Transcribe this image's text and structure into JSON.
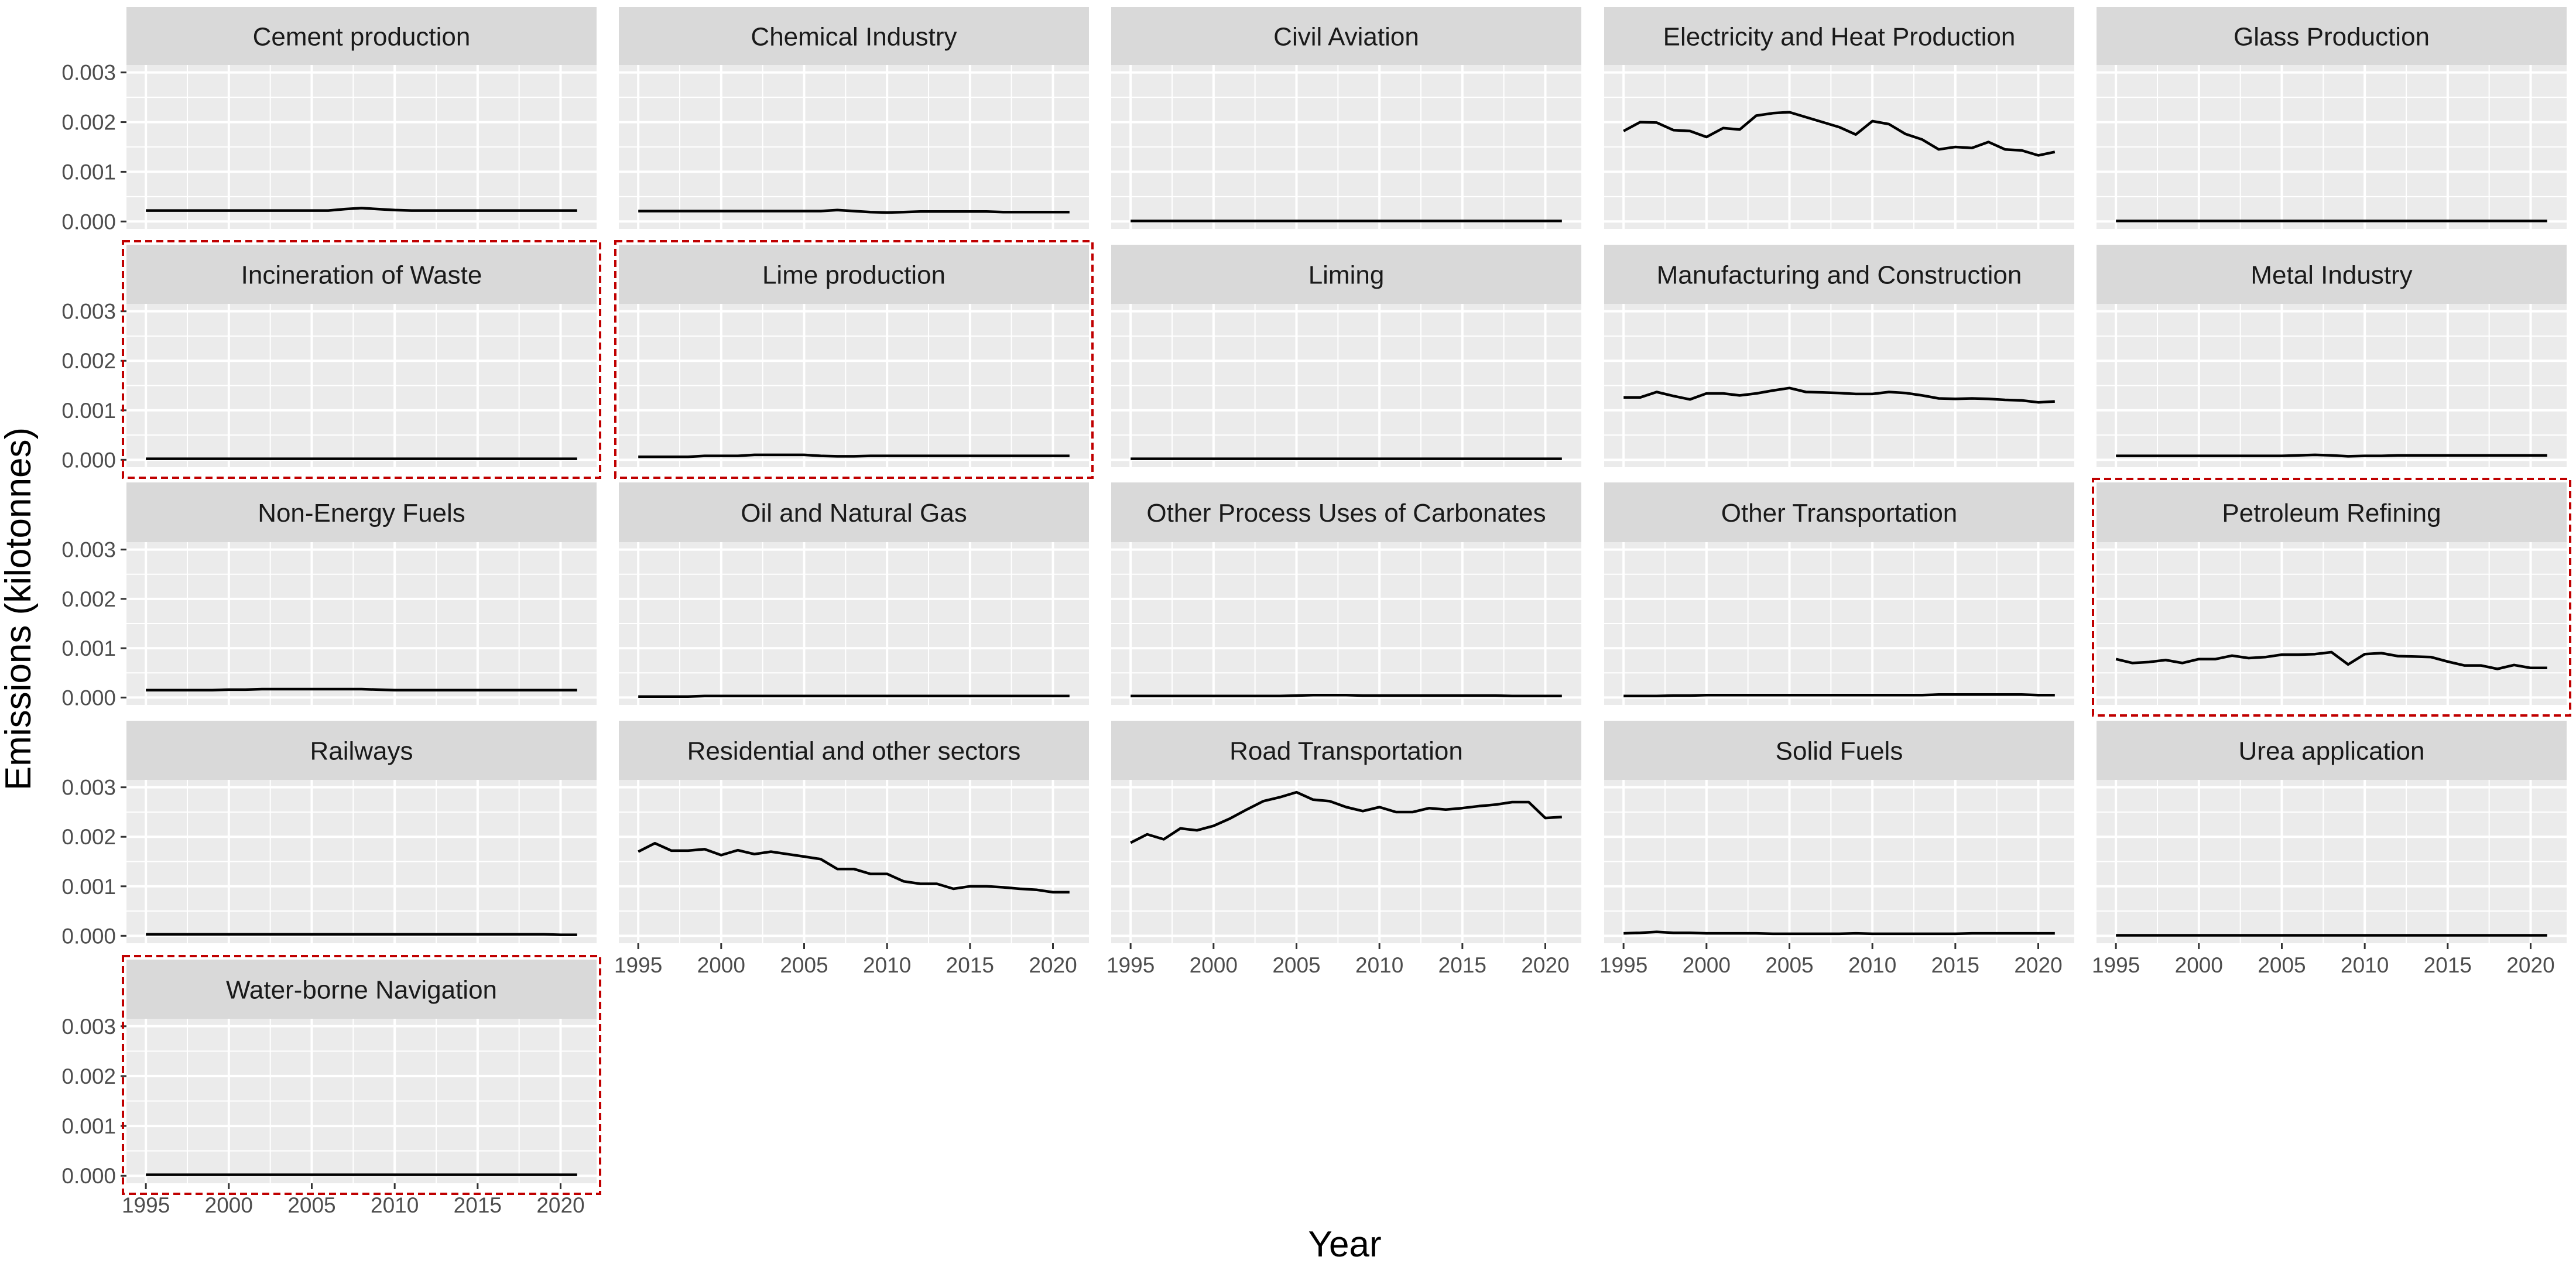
{
  "page": {
    "background": "#ffffff"
  },
  "chart_data": {
    "type": "line",
    "layout": "facet-wrap",
    "columns": 5,
    "xlabel": "Year",
    "ylabel": "Emissions (kilotonnes)",
    "xlim": [
      1995,
      2021
    ],
    "ylim": [
      0,
      0.003
    ],
    "x_ticks": [
      1995,
      2000,
      2005,
      2010,
      2015,
      2020
    ],
    "x_tick_labels": [
      "1995",
      "2000",
      "2005",
      "2010",
      "2015",
      "2020"
    ],
    "y_ticks": [
      0,
      0.001,
      0.002,
      0.003
    ],
    "y_tick_labels": [
      "0.000",
      "0.001",
      "0.002",
      "0.003"
    ],
    "grid": true,
    "colors": {
      "panel_background": "#ebebeb",
      "strip_background": "#d9d9d9",
      "grid": "#ffffff",
      "line": "#000000",
      "axis_text": "#4d4d4d",
      "highlight_border": "#c00000"
    },
    "x_years": [
      1995,
      1996,
      1997,
      1998,
      1999,
      2000,
      2001,
      2002,
      2003,
      2004,
      2005,
      2006,
      2007,
      2008,
      2009,
      2010,
      2011,
      2012,
      2013,
      2014,
      2015,
      2016,
      2017,
      2018,
      2019,
      2020,
      2021
    ],
    "panels": [
      {
        "title": "Cement production",
        "highlighted": false,
        "values": [
          0.00022,
          0.00022,
          0.00022,
          0.00022,
          0.00022,
          0.00022,
          0.00022,
          0.00022,
          0.00022,
          0.00022,
          0.00022,
          0.00022,
          0.00025,
          0.00027,
          0.00025,
          0.00023,
          0.00022,
          0.00022,
          0.00022,
          0.00022,
          0.00022,
          0.00022,
          0.00022,
          0.00022,
          0.00022,
          0.00022,
          0.00022
        ]
      },
      {
        "title": "Chemical Industry",
        "highlighted": false,
        "values": [
          0.00021,
          0.00021,
          0.00021,
          0.00021,
          0.00021,
          0.00021,
          0.00021,
          0.00021,
          0.00021,
          0.00021,
          0.00021,
          0.00021,
          0.00023,
          0.00021,
          0.00019,
          0.00018,
          0.00019,
          0.0002,
          0.0002,
          0.0002,
          0.0002,
          0.0002,
          0.00019,
          0.00019,
          0.00019,
          0.00019,
          0.00019
        ]
      },
      {
        "title": "Civil Aviation",
        "highlighted": false,
        "values": [
          1e-05,
          1e-05,
          1e-05,
          1e-05,
          1e-05,
          1e-05,
          1e-05,
          1e-05,
          1e-05,
          1e-05,
          1e-05,
          1e-05,
          1e-05,
          1e-05,
          1e-05,
          1e-05,
          1e-05,
          1e-05,
          1e-05,
          1e-05,
          1e-05,
          1e-05,
          1e-05,
          1e-05,
          1e-05,
          1e-05,
          1e-05
        ]
      },
      {
        "title": "Electricity and Heat Production",
        "highlighted": false,
        "values": [
          0.00182,
          0.002,
          0.00199,
          0.00184,
          0.00182,
          0.0017,
          0.00188,
          0.00185,
          0.00213,
          0.00218,
          0.0022,
          0.0021,
          0.002,
          0.0019,
          0.00175,
          0.00202,
          0.00196,
          0.00176,
          0.00165,
          0.00145,
          0.0015,
          0.00148,
          0.0016,
          0.00145,
          0.00143,
          0.00133,
          0.0014
        ]
      },
      {
        "title": "Glass Production",
        "highlighted": false,
        "values": [
          1e-05,
          1e-05,
          1e-05,
          1e-05,
          1e-05,
          1e-05,
          1e-05,
          1e-05,
          1e-05,
          1e-05,
          1e-05,
          1e-05,
          1e-05,
          1e-05,
          1e-05,
          1e-05,
          1e-05,
          1e-05,
          1e-05,
          1e-05,
          1e-05,
          1e-05,
          1e-05,
          1e-05,
          1e-05,
          1e-05,
          1e-05
        ]
      },
      {
        "title": "Incineration of Waste",
        "highlighted": true,
        "values": [
          2e-05,
          2e-05,
          2e-05,
          2e-05,
          2e-05,
          2e-05,
          2e-05,
          2e-05,
          2e-05,
          2e-05,
          2e-05,
          2e-05,
          2e-05,
          2e-05,
          2e-05,
          2e-05,
          2e-05,
          2e-05,
          2e-05,
          2e-05,
          2e-05,
          2e-05,
          2e-05,
          2e-05,
          2e-05,
          2e-05,
          2e-05
        ]
      },
      {
        "title": "Lime production",
        "highlighted": true,
        "values": [
          6e-05,
          6e-05,
          6e-05,
          6e-05,
          8e-05,
          8e-05,
          8e-05,
          0.0001,
          0.0001,
          0.0001,
          0.0001,
          8e-05,
          7e-05,
          7e-05,
          8e-05,
          8e-05,
          8e-05,
          8e-05,
          8e-05,
          8e-05,
          8e-05,
          8e-05,
          8e-05,
          8e-05,
          8e-05,
          8e-05,
          8e-05
        ]
      },
      {
        "title": "Liming",
        "highlighted": false,
        "values": [
          2e-05,
          2e-05,
          2e-05,
          2e-05,
          2e-05,
          2e-05,
          2e-05,
          2e-05,
          2e-05,
          2e-05,
          2e-05,
          2e-05,
          2e-05,
          2e-05,
          2e-05,
          2e-05,
          2e-05,
          2e-05,
          2e-05,
          2e-05,
          2e-05,
          2e-05,
          2e-05,
          2e-05,
          2e-05,
          2e-05,
          2e-05
        ]
      },
      {
        "title": "Manufacturing and Construction",
        "highlighted": false,
        "values": [
          0.00126,
          0.00126,
          0.00137,
          0.00129,
          0.00122,
          0.00134,
          0.00134,
          0.0013,
          0.00134,
          0.0014,
          0.00145,
          0.00137,
          0.00136,
          0.00135,
          0.00133,
          0.00133,
          0.00137,
          0.00135,
          0.0013,
          0.00124,
          0.00123,
          0.00124,
          0.00123,
          0.00121,
          0.0012,
          0.00116,
          0.00118
        ]
      },
      {
        "title": "Metal Industry",
        "highlighted": false,
        "values": [
          8e-05,
          8e-05,
          8e-05,
          8e-05,
          8e-05,
          8e-05,
          8e-05,
          8e-05,
          8e-05,
          8e-05,
          8e-05,
          9e-05,
          0.0001,
          9e-05,
          7e-05,
          8e-05,
          8e-05,
          9e-05,
          9e-05,
          9e-05,
          9e-05,
          9e-05,
          9e-05,
          9e-05,
          9e-05,
          9e-05,
          9e-05
        ]
      },
      {
        "title": "Non-Energy Fuels",
        "highlighted": false,
        "values": [
          0.00015,
          0.00015,
          0.00015,
          0.00015,
          0.00015,
          0.00016,
          0.00016,
          0.00017,
          0.00017,
          0.00017,
          0.00017,
          0.00017,
          0.00017,
          0.00017,
          0.00016,
          0.00015,
          0.00015,
          0.00015,
          0.00015,
          0.00015,
          0.00015,
          0.00015,
          0.00015,
          0.00015,
          0.00015,
          0.00015,
          0.00015
        ]
      },
      {
        "title": "Oil and Natural Gas",
        "highlighted": false,
        "values": [
          2e-05,
          2e-05,
          2e-05,
          2e-05,
          3e-05,
          3e-05,
          3e-05,
          3e-05,
          3e-05,
          3e-05,
          3e-05,
          3e-05,
          3e-05,
          3e-05,
          3e-05,
          3e-05,
          3e-05,
          3e-05,
          3e-05,
          3e-05,
          3e-05,
          3e-05,
          3e-05,
          3e-05,
          3e-05,
          3e-05,
          3e-05
        ]
      },
      {
        "title": "Other Process Uses of Carbonates",
        "highlighted": false,
        "values": [
          3e-05,
          3e-05,
          3e-05,
          3e-05,
          3e-05,
          3e-05,
          3e-05,
          3e-05,
          3e-05,
          3e-05,
          4e-05,
          5e-05,
          5e-05,
          5e-05,
          4e-05,
          4e-05,
          4e-05,
          4e-05,
          4e-05,
          4e-05,
          4e-05,
          4e-05,
          4e-05,
          3e-05,
          3e-05,
          3e-05,
          3e-05
        ]
      },
      {
        "title": "Other Transportation",
        "highlighted": false,
        "values": [
          3e-05,
          3e-05,
          3e-05,
          4e-05,
          4e-05,
          5e-05,
          5e-05,
          5e-05,
          5e-05,
          5e-05,
          5e-05,
          5e-05,
          5e-05,
          5e-05,
          5e-05,
          5e-05,
          5e-05,
          5e-05,
          5e-05,
          6e-05,
          6e-05,
          6e-05,
          6e-05,
          6e-05,
          6e-05,
          5e-05,
          5e-05
        ]
      },
      {
        "title": "Petroleum Refining",
        "highlighted": true,
        "values": [
          0.00078,
          0.0007,
          0.00072,
          0.00076,
          0.0007,
          0.00078,
          0.00078,
          0.00085,
          0.0008,
          0.00082,
          0.00087,
          0.00087,
          0.00088,
          0.00092,
          0.00067,
          0.00088,
          0.0009,
          0.00084,
          0.00083,
          0.00082,
          0.00073,
          0.00065,
          0.00065,
          0.00058,
          0.00066,
          0.0006,
          0.0006
        ]
      },
      {
        "title": "Railways",
        "highlighted": false,
        "values": [
          3e-05,
          3e-05,
          3e-05,
          3e-05,
          3e-05,
          3e-05,
          3e-05,
          3e-05,
          3e-05,
          3e-05,
          3e-05,
          3e-05,
          3e-05,
          3e-05,
          3e-05,
          3e-05,
          3e-05,
          3e-05,
          3e-05,
          3e-05,
          3e-05,
          3e-05,
          3e-05,
          3e-05,
          3e-05,
          2e-05,
          2e-05
        ]
      },
      {
        "title": "Residential and other sectors",
        "highlighted": false,
        "values": [
          0.0017,
          0.00187,
          0.00172,
          0.00172,
          0.00175,
          0.00163,
          0.00173,
          0.00165,
          0.0017,
          0.00165,
          0.0016,
          0.00155,
          0.00135,
          0.00135,
          0.00125,
          0.00125,
          0.0011,
          0.00105,
          0.00105,
          0.00095,
          0.001,
          0.001,
          0.00098,
          0.00095,
          0.00093,
          0.00088,
          0.00088
        ]
      },
      {
        "title": "Road Transportation",
        "highlighted": false,
        "values": [
          0.00188,
          0.00205,
          0.00195,
          0.00217,
          0.00213,
          0.00222,
          0.00237,
          0.00255,
          0.00272,
          0.0028,
          0.0029,
          0.00275,
          0.00272,
          0.0026,
          0.00252,
          0.0026,
          0.0025,
          0.0025,
          0.00258,
          0.00255,
          0.00258,
          0.00262,
          0.00265,
          0.0027,
          0.0027,
          0.00238,
          0.0024
        ]
      },
      {
        "title": "Solid Fuels",
        "highlighted": false,
        "values": [
          5e-05,
          6e-05,
          8e-05,
          6e-05,
          6e-05,
          5e-05,
          5e-05,
          5e-05,
          5e-05,
          4e-05,
          4e-05,
          4e-05,
          4e-05,
          4e-05,
          5e-05,
          4e-05,
          4e-05,
          4e-05,
          4e-05,
          4e-05,
          4e-05,
          5e-05,
          5e-05,
          5e-05,
          5e-05,
          5e-05,
          5e-05
        ]
      },
      {
        "title": "Urea application",
        "highlighted": false,
        "values": [
          1e-05,
          1e-05,
          1e-05,
          1e-05,
          1e-05,
          1e-05,
          1e-05,
          1e-05,
          1e-05,
          1e-05,
          1e-05,
          1e-05,
          1e-05,
          1e-05,
          1e-05,
          1e-05,
          1e-05,
          1e-05,
          1e-05,
          1e-05,
          1e-05,
          1e-05,
          1e-05,
          1e-05,
          1e-05,
          1e-05,
          1e-05
        ]
      },
      {
        "title": "Water-borne Navigation",
        "highlighted": true,
        "values": [
          2e-05,
          2e-05,
          2e-05,
          2e-05,
          2e-05,
          2e-05,
          2e-05,
          2e-05,
          2e-05,
          2e-05,
          2e-05,
          2e-05,
          2e-05,
          2e-05,
          2e-05,
          2e-05,
          2e-05,
          2e-05,
          2e-05,
          2e-05,
          2e-05,
          2e-05,
          2e-05,
          2e-05,
          2e-05,
          2e-05,
          2e-05
        ]
      }
    ]
  }
}
